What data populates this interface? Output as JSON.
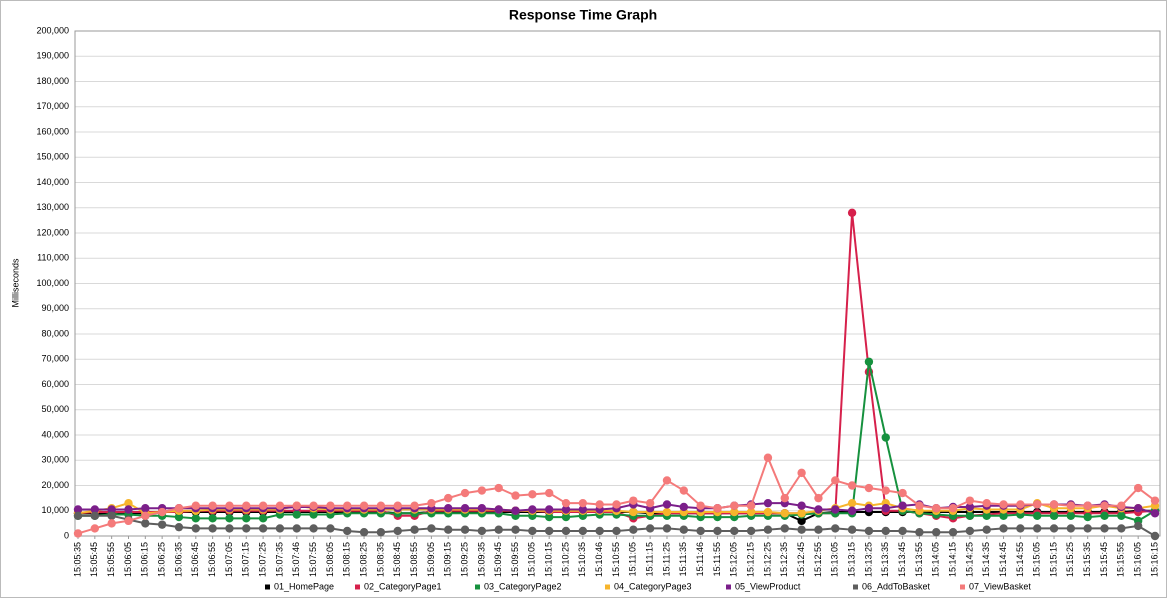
{
  "chart_data": {
    "type": "line",
    "title": "Response Time Graph",
    "y_label": "Milliseconds",
    "categories": [
      "15:05:35",
      "15:05:45",
      "15:05:55",
      "15:06:05",
      "15:06:15",
      "15:06:25",
      "15:06:35",
      "15:06:45",
      "15:06:55",
      "15:07:05",
      "15:07:15",
      "15:07:25",
      "15:07:35",
      "15:07:46",
      "15:07:55",
      "15:08:05",
      "15:08:15",
      "15:08:25",
      "15:08:35",
      "15:08:45",
      "15:08:55",
      "15:09:05",
      "15:09:15",
      "15:09:25",
      "15:09:35",
      "15:09:45",
      "15:09:55",
      "15:10:05",
      "15:10:15",
      "15:10:25",
      "15:10:35",
      "15:10:46",
      "15:10:55",
      "15:11:05",
      "15:11:15",
      "15:11:25",
      "15:11:35",
      "15:11:46",
      "15:11:55",
      "15:12:05",
      "15:12:15",
      "15:12:25",
      "15:12:35",
      "15:12:45",
      "15:12:55",
      "15:13:05",
      "15:13:15",
      "15:13:25",
      "15:13:35",
      "15:13:45",
      "15:13:55",
      "15:14:05",
      "15:14:15",
      "15:14:25",
      "15:14:35",
      "15:14:45",
      "15:14:55",
      "15:15:05",
      "15:15:15",
      "15:15:25",
      "15:15:35",
      "15:15:45",
      "15:15:55",
      "15:16:05",
      "15:16:15"
    ],
    "ylim": [
      0,
      200000
    ],
    "yticks": [
      0,
      {
        "value": 10000,
        "label": "10,000"
      },
      {
        "value": 20000,
        "label": "20,000"
      },
      {
        "value": 30000,
        "label": "30,000"
      },
      {
        "value": 40000,
        "label": "40,000"
      },
      {
        "value": 50000,
        "label": "50,000"
      },
      {
        "value": 60000,
        "label": "60,000"
      },
      {
        "value": 70000,
        "label": "70,000"
      },
      {
        "value": 80000,
        "label": "80,000"
      },
      {
        "value": 90000,
        "label": "90,000"
      },
      {
        "value": 100000,
        "label": "100,000"
      },
      {
        "value": 110000,
        "label": "110,000"
      },
      {
        "value": 120000,
        "label": "120,000"
      },
      {
        "value": 130000,
        "label": "130,000"
      },
      {
        "value": 140000,
        "label": "140,000"
      },
      {
        "value": 150000,
        "label": "150,000"
      },
      {
        "value": 160000,
        "label": "160,000"
      },
      {
        "value": 170000,
        "label": "170,000"
      },
      {
        "value": 180000,
        "label": "180,000"
      },
      {
        "value": 190000,
        "label": "190,000"
      },
      {
        "value": 200000,
        "label": "200,000"
      }
    ],
    "grid": true,
    "legend": "bottom",
    "series": [
      {
        "name": "01_HomePage",
        "color": "#000000",
        "values": [
          9000,
          9000,
          8500,
          9000,
          9000,
          9500,
          9500,
          9500,
          9500,
          9500,
          9500,
          9500,
          9500,
          9500,
          9500,
          9500,
          9500,
          9500,
          9500,
          9000,
          9000,
          9500,
          9500,
          9500,
          9500,
          9500,
          9500,
          9500,
          9500,
          9500,
          9500,
          9500,
          9500,
          9500,
          9000,
          9000,
          9000,
          9000,
          9000,
          9000,
          9000,
          9000,
          9000,
          6000,
          9000,
          9500,
          9500,
          9500,
          9500,
          9500,
          9500,
          9500,
          9500,
          9500,
          9500,
          9500,
          9500,
          9500,
          9500,
          9500,
          9500,
          9500,
          9500,
          10000,
          10000
        ]
      },
      {
        "name": "02_CategoryPage1",
        "color": "#d6204b",
        "values": [
          9000,
          9500,
          9500,
          9500,
          9500,
          9500,
          9500,
          10000,
          10000,
          10000,
          10000,
          10000,
          10000,
          10000,
          10000,
          10000,
          10000,
          10000,
          10000,
          8000,
          8000,
          10000,
          10000,
          10000,
          10000,
          10000,
          10000,
          10000,
          9500,
          9500,
          9500,
          9500,
          9500,
          7000,
          8000,
          9000,
          9000,
          9000,
          9000,
          9000,
          9000,
          9000,
          9000,
          9000,
          9000,
          9000,
          128000,
          65000,
          10000,
          10000,
          9000,
          8000,
          7000,
          8000,
          8500,
          9000,
          9000,
          9000,
          9000,
          9000,
          9000,
          9000,
          9000,
          9500,
          10000
        ]
      },
      {
        "name": "03_CategoryPage2",
        "color": "#16913e",
        "values": [
          8000,
          8000,
          8500,
          8500,
          8000,
          8000,
          7500,
          7000,
          7000,
          7000,
          7000,
          7000,
          8500,
          8500,
          8500,
          8500,
          9000,
          9000,
          9000,
          9000,
          9000,
          9000,
          9000,
          9000,
          9000,
          9000,
          8000,
          8000,
          7500,
          7500,
          8000,
          8500,
          8500,
          8000,
          8000,
          8000,
          8000,
          7500,
          7500,
          7500,
          8000,
          8000,
          8000,
          8500,
          9000,
          9000,
          9000,
          69000,
          39000,
          10000,
          9000,
          8500,
          8000,
          8000,
          8000,
          8000,
          8500,
          8000,
          8000,
          8000,
          7500,
          8000,
          8000,
          6000,
          10000
        ]
      },
      {
        "name": "04_CategoryPage3",
        "color": "#f7b52c",
        "values": [
          9000,
          10000,
          11000,
          13000,
          9000,
          9500,
          10000,
          10000,
          10500,
          10500,
          10500,
          10500,
          10500,
          12000,
          11000,
          10500,
          10500,
          10500,
          10500,
          10500,
          10500,
          10500,
          10500,
          10500,
          10500,
          10500,
          10000,
          10000,
          10000,
          10000,
          10000,
          10000,
          10000,
          9500,
          9500,
          9500,
          9500,
          9500,
          9500,
          9500,
          9500,
          9500,
          9000,
          9000,
          10000,
          11000,
          13000,
          12000,
          13000,
          11000,
          10000,
          10000,
          10000,
          11000,
          10500,
          10500,
          10500,
          13000,
          11000,
          11000,
          11000,
          12000,
          11000,
          11000,
          12000
        ]
      },
      {
        "name": "05_ViewProduct",
        "color": "#7b1f8a",
        "values": [
          10500,
          10500,
          10500,
          10500,
          11000,
          11000,
          11000,
          11000,
          11000,
          11000,
          11000,
          11000,
          11000,
          11500,
          11500,
          11000,
          11000,
          11000,
          11000,
          11000,
          11000,
          11000,
          11000,
          11000,
          11000,
          10500,
          10000,
          10500,
          10500,
          10500,
          10500,
          10500,
          11000,
          12500,
          11000,
          12500,
          11500,
          11000,
          11000,
          12000,
          12500,
          13000,
          13000,
          12000,
          10500,
          10500,
          10000,
          11000,
          11000,
          12000,
          12500,
          11000,
          11500,
          11500,
          12000,
          12000,
          12000,
          12500,
          12500,
          12500,
          12000,
          12500,
          11500,
          11000,
          9000
        ]
      },
      {
        "name": "06_AddToBasket",
        "color": "#5e5e5e",
        "values": [
          8000,
          8000,
          8000,
          6500,
          5000,
          4500,
          3500,
          3000,
          3000,
          3000,
          3000,
          3000,
          3000,
          3000,
          3000,
          3000,
          2000,
          1500,
          1500,
          2000,
          2500,
          3000,
          2500,
          2500,
          2000,
          2500,
          2500,
          2000,
          2000,
          2000,
          2000,
          2000,
          2000,
          2500,
          3000,
          3000,
          2500,
          2000,
          2000,
          2000,
          2000,
          2500,
          3000,
          2500,
          2500,
          3000,
          2500,
          2000,
          2000,
          2000,
          1500,
          1500,
          1500,
          2000,
          2500,
          3000,
          3000,
          3000,
          3000,
          3000,
          3000,
          3000,
          3000,
          4000,
          0
        ]
      },
      {
        "name": "07_ViewBasket",
        "color": "#f47a7a",
        "values": [
          1000,
          3000,
          5000,
          6000,
          8000,
          9500,
          11000,
          12000,
          12000,
          12000,
          12000,
          12000,
          12000,
          12000,
          12000,
          12000,
          12000,
          12000,
          12000,
          12000,
          12000,
          13000,
          15000,
          17000,
          18000,
          19000,
          16000,
          16500,
          17000,
          13000,
          13000,
          12500,
          12500,
          14000,
          13000,
          22000,
          18000,
          12000,
          11000,
          12000,
          12000,
          31000,
          15000,
          25000,
          15000,
          22000,
          20000,
          19000,
          18000,
          17000,
          12000,
          11000,
          11000,
          14000,
          13000,
          12500,
          12500,
          12500,
          12500,
          12000,
          12000,
          12000,
          12000,
          19000,
          14000
        ]
      }
    ]
  }
}
